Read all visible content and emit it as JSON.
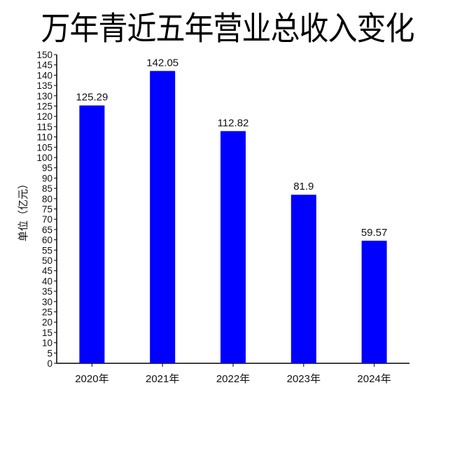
{
  "chart_data": {
    "type": "bar",
    "title": "万年青近五年营业总收入变化",
    "xlabel": "",
    "ylabel": "单位（亿元）",
    "categories": [
      "2020年",
      "2021年",
      "2022年",
      "2023年",
      "2024年"
    ],
    "values": [
      125.29,
      142.05,
      112.82,
      81.9,
      59.57
    ],
    "data_labels": [
      "125.29",
      "142.05",
      "112.82",
      "81.9",
      "59.57"
    ],
    "ylim": [
      0,
      150
    ],
    "ytick_step": 5,
    "grid": false,
    "bar_color": "#0000ff"
  }
}
